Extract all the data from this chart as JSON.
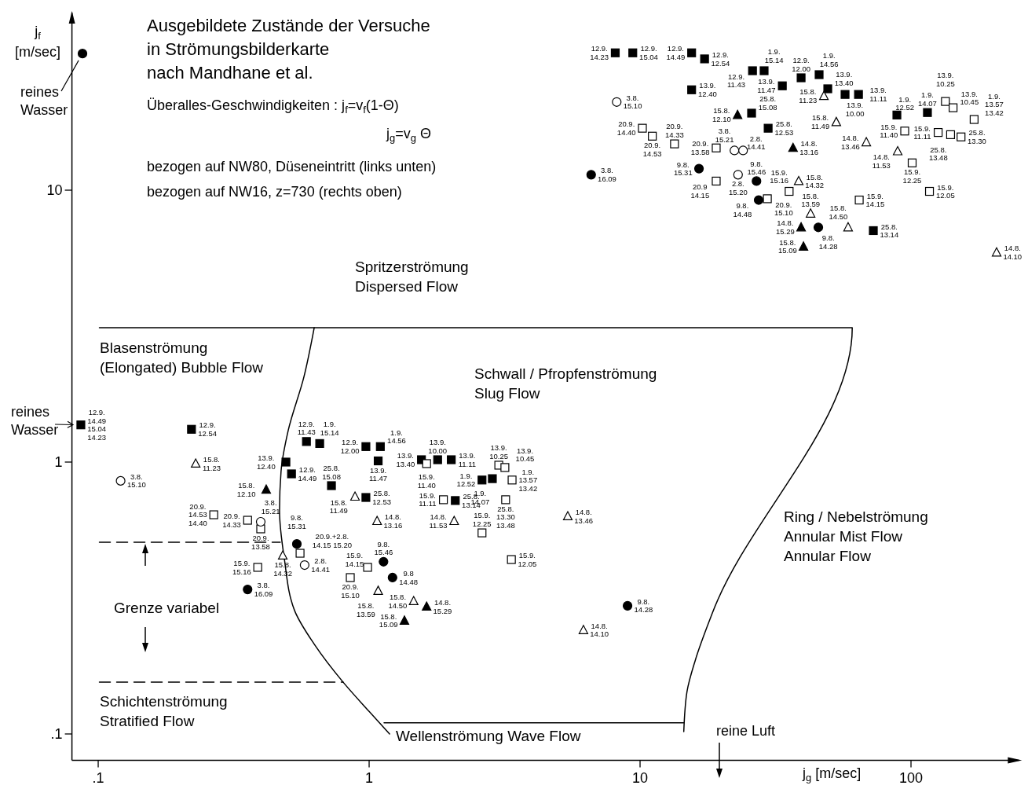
{
  "chart_data": {
    "type": "scatter",
    "title": "Ausgebildete Zustände der Versuche\nin Strömungsbilderkarte\nnach Mandhane et al.",
    "xlabel": "j$_{g}$   [m/sec]",
    "ylabel": "j$_{f}$\n[m/sec]",
    "log": "xy",
    "xlim": [
      0.08,
      250
    ],
    "ylim": [
      0.08,
      45
    ],
    "xticks": [
      {
        "value": 0.1,
        "label": ".1"
      },
      1,
      10,
      100
    ],
    "yticks": [
      {
        "value": 0.1,
        "label": ".1"
      },
      1,
      10
    ],
    "series": [
      {
        "type": "line",
        "color": "#000000",
        "line_style": "solid",
        "x": [
          0.101,
          60.7,
          18.5,
          16.0,
          14.9,
          14.5
        ],
        "values": [
          3.12,
          3.12,
          0.279,
          0.187,
          0.143,
          0.102
        ]
      },
      {
        "type": "line",
        "color": "#000000",
        "line_style": "solid",
        "x": [
          1.135,
          14.5
        ],
        "values": [
          0.11,
          0.11
        ]
      },
      {
        "type": "line",
        "color": "#000000",
        "line_style": "solid",
        "x": [
          0.627,
          0.574,
          0.503,
          0.473,
          0.467,
          0.486,
          0.531,
          0.627,
          0.802,
          1,
          1.19
        ],
        "values": [
          3.12,
          2.05,
          1.31,
          0.923,
          0.662,
          0.444,
          0.284,
          0.214,
          0.155,
          0.121,
          0.1
        ]
      },
      {
        "type": "line",
        "color": "#000000",
        "line_style": "dashed",
        "x": [
          0.101,
          0.47
        ],
        "values": [
          0.507,
          0.507
        ]
      },
      {
        "type": "line",
        "color": "#000000",
        "line_style": "dashed",
        "x": [
          0.101,
          0.802
        ],
        "values": [
          0.155,
          0.155
        ]
      },
      {
        "color": "#000000",
        "marker": "square",
        "x": [
          8.1,
          9.4,
          15.5,
          17.3,
          26,
          28.7,
          39.3,
          45.8,
          33.5,
          15.5,
          49.3,
          57.1,
          64,
          25.8,
          29.7,
          88.7,
          115,
          72.6,
          0.0863,
          0.221,
          0.587,
          0.657,
          0.493,
          0.517,
          0.726,
          0.973,
          0.973,
          1.1,
          1.08,
          1.56,
          1.79,
          2.01,
          2.08,
          2.61,
          2.85
        ],
        "values": [
          32,
          32,
          32,
          30.4,
          27.5,
          27.5,
          25.9,
          26.6,
          24.2,
          23.4,
          23.6,
          22.5,
          22.5,
          19.2,
          16.9,
          18.9,
          19.3,
          7.1,
          1.37,
          1.32,
          1.19,
          1.17,
          1.0,
          0.905,
          0.819,
          0.741,
          1.14,
          1.14,
          1.01,
          1.02,
          1.02,
          1.02,
          0.722,
          0.859,
          0.869
        ],
        "value_labels": [
          "12.9.\n14.23",
          "12.9.\n15.04",
          "12.9.\n14.49",
          "12.9.\n12.54",
          "12.9.\n11.43",
          "1.9.\n15.14",
          "12.9.\n12.00",
          "1.9.\n14.56",
          "13.9.\n11.47",
          "13.9.\n12.40",
          "13.9.\n13.40",
          "13.9.\n10.00",
          "13.9.\n11.11",
          "25.8.\n15.08",
          "25.8.\n12.53",
          "1.9.\n12.52",
          "1.9.\n14.07",
          "25.8.\n13.14",
          "12.9.\n14.49\n15.04\n14.23",
          "12.9.\n12.54",
          "12.9.\n11.43",
          "1.9.\n15.14",
          "13.9.\n12.40",
          "12.9.\n14.49",
          "25.8.\n15.08",
          "25.8.\n12.53",
          "12.9.\n12.00",
          "1.9.\n14.56",
          "13.9.\n11.47",
          "13.9.\n13.40",
          "13.9.\n10.00",
          "13.9.\n11.11",
          "25.8.\n13.14",
          "1.9.\n12.52",
          "1.9.\n14.07"
        ]
      },
      {
        "color": "#ffffff",
        "marker": "square",
        "x": [
          10.2,
          11.1,
          13.4,
          19.1,
          19.1,
          29.5,
          35.5,
          64.4,
          94.8,
          126,
          140,
          153,
          101,
          117,
          134,
          143,
          171,
          1.63,
          1.88,
          3.01,
          3.17,
          3.37,
          3.19,
          2.61,
          3.35,
          0.987,
          0.267,
          0.356,
          0.398,
          0.556,
          0.852,
          0.388
        ],
        "values": [
          16.9,
          15.8,
          14.8,
          14.3,
          10.8,
          9.3,
          9.9,
          9.2,
          16.5,
          16.3,
          16.0,
          15.7,
          12.6,
          9.9,
          21.2,
          20.1,
          18.2,
          0.987,
          0.727,
          0.974,
          0.955,
          0.859,
          0.727,
          0.549,
          0.438,
          0.41,
          0.64,
          0.611,
          0.568,
          0.462,
          0.376,
          0.41
        ],
        "value_labels": [
          "20.9.\n14.40",
          "20.9.\n14.53",
          "20.9.\n14.33",
          "20.9.\n13.58",
          "20.9\n14.15",
          "20.9.\n15.10",
          "15.9.\n15.16",
          "15.9.\n14.15",
          "15.9.\n11.40",
          "15.9.\n11.11",
          "25.8.\n13.48",
          "25.8.\n13.30",
          "15.9.\n12.25",
          "15.9.\n12.05",
          "13.9.\n10.25",
          "13.9.\n10.45",
          "1.9.\n13.57\n13.42",
          "15.9.\n11.40",
          "15.9.\n11.11",
          "13.9.\n10.25",
          "13.9.\n10.45",
          "1.9.\n13.57\n13.42",
          "25.8.\n13.30\n13.48",
          "15.9.\n12.25",
          "15.9.\n12.05",
          "15.9.\n14.15",
          "20.9.\n14.53\n14.40",
          "20.9.\n14.33",
          "20.9.\n13.58",
          "20.9.+2.8.\n14.15  15.20",
          "20.9.\n15.10",
          "15.9.\n15.16"
        ]
      },
      {
        "color": "#000000",
        "marker": "circle",
        "x": [
          6.6,
          16.5,
          26.9,
          27.4,
          45.5,
          0.0875,
          0.356,
          0.541,
          1.13,
          1.22,
          8.99
        ],
        "values": [
          11.4,
          12.0,
          10.8,
          9.2,
          7.3,
          31.8,
          0.34,
          0.5,
          0.43,
          0.376,
          0.296
        ],
        "value_labels": [
          "3.8.\n16.09",
          "9.8.\n15.31",
          "9.8.\n15.46",
          "9.8.\n14.48",
          "9.8.\n14.28",
          null,
          "3.8.\n16.09",
          "9.8.\n15.31",
          "9.8.\n15.46",
          "9.8\n14.48",
          "9.8.\n14.28"
        ]
      },
      {
        "color": "#ffffff",
        "marker": "circle",
        "x": [
          8.2,
          22.3,
          24,
          23,
          0.121,
          0.398,
          0.578
        ],
        "values": [
          21.1,
          14.0,
          14.0,
          11.4,
          0.853,
          0.603,
          0.418
        ],
        "value_labels": [
          "3.8.\n15.10",
          "3.8.\n15.21",
          "2.8.\n14.41",
          "2.8.\n15.20",
          "3.8.\n15.10",
          "3.8.\n15.21",
          "2.8.\n14.41"
        ]
      },
      {
        "color": "#000000",
        "marker": "triangle",
        "x": [
          22.9,
          36.7,
          39.3,
          40.1,
          0.417,
          1.63,
          1.35
        ],
        "values": [
          18.9,
          14.3,
          7.3,
          6.2,
          0.792,
          0.294,
          0.261
        ],
        "value_labels": [
          "15.8.\n12.10",
          "14.8.\n13.16",
          "14.8.\n15.29",
          "15.8.\n15.09",
          "15.8.\n12.10",
          "14.8.\n15.29",
          "15.8.\n15.09"
        ]
      },
      {
        "color": "#ffffff",
        "marker": "triangle",
        "x": [
          47.7,
          53,
          68.4,
          89.3,
          38.5,
          42.6,
          58.6,
          207,
          0.229,
          0.48,
          0.887,
          1.07,
          2.06,
          1.08,
          1.46,
          5.41,
          6.18
        ],
        "values": [
          22.2,
          17.8,
          15.0,
          13.9,
          10.8,
          8.2,
          7.3,
          5.9,
          0.987,
          0.453,
          0.746,
          0.607,
          0.607,
          0.336,
          0.308,
          0.632,
          0.241
        ],
        "value_labels": [
          "15.8.\n11.23",
          "15.8.\n11.49",
          "14.8.\n13.46",
          "14.8.\n11.53",
          "15.8.\n14.32",
          "15.8.\n13.59",
          "15.8.\n14.50",
          "14.8.\n14.10",
          "15.8.\n11.23",
          "15.8.\n14.32",
          "15.8.\n11.49",
          "14.8.\n13.16",
          "14.8.\n11.53",
          "15.8.\n13.59",
          "15.8.\n14.50",
          "14.8.\n13.46",
          "14.8.\n14.10"
        ]
      }
    ],
    "annotations": [
      "Überalles-Geschwindigkeiten : j$_{f}$=v$_{f}$(1-Θ)",
      "j$_{g}$=v$_{g}$ Θ",
      "bezogen auf NW80, Düseneintritt (links unten)",
      "bezogen auf NW16, z=730 (rechts oben)",
      "Spritzerströmung\nDispersed Flow",
      "Blasenströmung\n(Elongated) Bubble Flow",
      "Schwall / Pfropfenströmung\nSlug Flow",
      "Ring / Nebelströmung\nAnnular Mist  Flow\nAnnular Flow",
      "Grenze variabel",
      "Schichtenströmung\nStratified Flow",
      "Wellenströmung    Wave Flow",
      "reine Luft",
      {
        "text": "reines\nWasser",
        "x": 0.0875,
        "y": 31.8
      },
      {
        "text": "reines\nWasser",
        "x": 0.0863,
        "y": 1.37
      }
    ]
  }
}
